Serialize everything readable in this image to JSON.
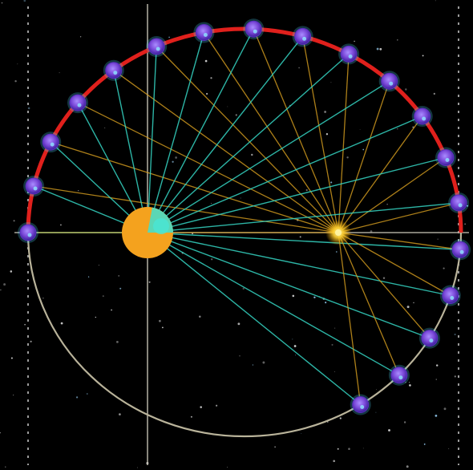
{
  "colors": {
    "background": "#000000",
    "orbit_traversed": "#e0201c",
    "orbit_remaining": "#b9b39a",
    "axis_line": "#c9c6b8",
    "frame_dots": "#cfcfcf",
    "ray_to_sun": "#35d5c3",
    "ray_to_focus": "#d9a020",
    "planet_fill": "#7a48d8",
    "planet_rim": "#5a2ec0",
    "planet_glow": "#4fd8ff",
    "sun_fill": "#f4a21e",
    "sun_highlight": "#3fe0d0",
    "empty_focus": "#ffe040"
  },
  "icons": {
    "sun": "sun-icon",
    "planet": "planet-marker",
    "empty_focus": "empty-focus-star"
  },
  "diagram": {
    "orbit_type": "ellipse",
    "planet_positions_count": 19,
    "rays_per_position": 2,
    "traversed_fraction": 0.5
  }
}
